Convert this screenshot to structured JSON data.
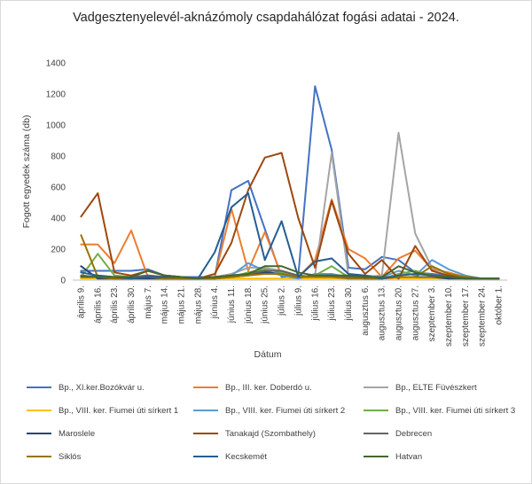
{
  "chart_data": {
    "type": "line",
    "title": "Vadgesztenyelevél-aknázómoly csapdahálózat fogási adatai - 2024.",
    "xlabel": "Dátum",
    "ylabel": "Fogott egyedek száma (db)",
    "ylim": [
      0,
      1400
    ],
    "yticks": [
      0,
      200,
      400,
      600,
      800,
      1000,
      1200,
      1400
    ],
    "categories": [
      "április 9.",
      "április 16.",
      "április 23.",
      "április 30.",
      "május 7.",
      "május 14.",
      "május 21.",
      "május 28.",
      "június 4.",
      "június 11.",
      "június 18.",
      "június 25.",
      "július 2.",
      "július 9.",
      "július 16.",
      "július 23.",
      "július 30.",
      "augusztus 6.",
      "augusztus 13.",
      "augusztus 20.",
      "augusztus 27.",
      "szeptember 3.",
      "szeptember 10.",
      "szeptember 17.",
      "szeptember 24.",
      "október 1."
    ],
    "legend_position": "bottom",
    "grid": false,
    "series": [
      {
        "name": "Bp., XI.ker.Bozókvár u.",
        "color": "#4472C4",
        "values": [
          60,
          60,
          60,
          60,
          70,
          30,
          20,
          20,
          20,
          580,
          640,
          330,
          20,
          30,
          1250,
          840,
          80,
          70,
          150,
          130,
          50,
          40,
          30,
          20,
          10,
          10
        ]
      },
      {
        "name": "Bp., III. ker. Doberdó u.",
        "color": "#ED7D31",
        "values": [
          230,
          230,
          110,
          320,
          20,
          20,
          10,
          10,
          20,
          460,
          60,
          310,
          30,
          20,
          130,
          520,
          200,
          140,
          20,
          140,
          190,
          70,
          50,
          20,
          10,
          10
        ]
      },
      {
        "name": "Bp., ELTE Füvészkert",
        "color": "#A5A5A5",
        "values": [
          30,
          20,
          10,
          20,
          30,
          20,
          10,
          10,
          20,
          40,
          80,
          80,
          60,
          20,
          30,
          820,
          30,
          20,
          30,
          950,
          300,
          80,
          40,
          20,
          10,
          10
        ]
      },
      {
        "name": "Bp., VIII. ker. Fiumei úti sírkert 1",
        "color": "#FFC000",
        "values": [
          10,
          10,
          10,
          10,
          10,
          10,
          10,
          10,
          10,
          10,
          10,
          10,
          10,
          10,
          10,
          10,
          10,
          10,
          10,
          10,
          10,
          10,
          10,
          10,
          10,
          10
        ]
      },
      {
        "name": "Bp., VIII. ker. Fiumei úti sírkert 2",
        "color": "#5B9BD5",
        "values": [
          20,
          20,
          10,
          10,
          20,
          10,
          10,
          10,
          20,
          30,
          110,
          60,
          30,
          10,
          40,
          40,
          20,
          30,
          20,
          60,
          30,
          130,
          70,
          30,
          10,
          10
        ]
      },
      {
        "name": "Bp., VIII. ker. Fiumei úti sírkert 3",
        "color": "#70AD47",
        "values": [
          20,
          170,
          30,
          20,
          30,
          20,
          10,
          10,
          20,
          20,
          50,
          70,
          50,
          20,
          30,
          90,
          20,
          20,
          10,
          40,
          60,
          30,
          20,
          10,
          10,
          10
        ]
      },
      {
        "name": "Maroslele",
        "color": "#264478",
        "values": [
          90,
          10,
          10,
          10,
          10,
          10,
          10,
          10,
          10,
          20,
          30,
          50,
          40,
          20,
          30,
          30,
          20,
          10,
          10,
          20,
          20,
          20,
          10,
          10,
          10,
          10
        ]
      },
      {
        "name": "Tanakajd (Szombathely)",
        "color": "#9E480E",
        "values": [
          410,
          560,
          50,
          30,
          60,
          30,
          20,
          10,
          40,
          240,
          580,
          790,
          820,
          400,
          80,
          510,
          170,
          40,
          130,
          10,
          220,
          60,
          30,
          20,
          10,
          10
        ]
      },
      {
        "name": "Debrecen",
        "color": "#636363",
        "values": [
          30,
          20,
          20,
          20,
          30,
          20,
          10,
          10,
          20,
          30,
          40,
          60,
          60,
          30,
          20,
          20,
          20,
          20,
          20,
          20,
          20,
          20,
          20,
          10,
          10,
          10
        ]
      },
      {
        "name": "Siklós",
        "color": "#997300",
        "values": [
          290,
          20,
          10,
          10,
          20,
          10,
          10,
          10,
          10,
          20,
          30,
          40,
          40,
          20,
          20,
          20,
          10,
          10,
          10,
          20,
          20,
          90,
          40,
          20,
          10,
          10
        ]
      },
      {
        "name": "Kecskemét",
        "color": "#255E91",
        "values": [
          50,
          30,
          20,
          10,
          20,
          20,
          20,
          10,
          180,
          470,
          560,
          130,
          380,
          20,
          120,
          140,
          40,
          30,
          10,
          30,
          40,
          30,
          20,
          10,
          10,
          10
        ]
      },
      {
        "name": "Hatvan",
        "color": "#43682B",
        "values": [
          20,
          20,
          20,
          20,
          60,
          30,
          20,
          10,
          20,
          30,
          40,
          90,
          90,
          50,
          30,
          30,
          30,
          20,
          20,
          90,
          50,
          30,
          20,
          10,
          10,
          10
        ]
      }
    ]
  }
}
